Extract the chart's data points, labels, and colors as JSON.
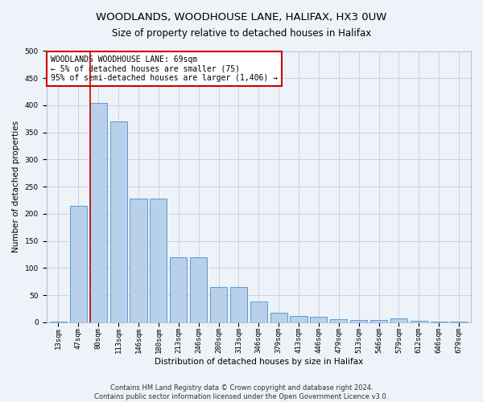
{
  "title": "WOODLANDS, WOODHOUSE LANE, HALIFAX, HX3 0UW",
  "subtitle": "Size of property relative to detached houses in Halifax",
  "xlabel": "Distribution of detached houses by size in Halifax",
  "ylabel": "Number of detached properties",
  "categories": [
    "13sqm",
    "47sqm",
    "80sqm",
    "113sqm",
    "146sqm",
    "180sqm",
    "213sqm",
    "246sqm",
    "280sqm",
    "313sqm",
    "346sqm",
    "379sqm",
    "413sqm",
    "446sqm",
    "479sqm",
    "513sqm",
    "546sqm",
    "579sqm",
    "612sqm",
    "646sqm",
    "679sqm"
  ],
  "values": [
    2,
    215,
    405,
    370,
    228,
    228,
    120,
    120,
    65,
    65,
    38,
    17,
    12,
    10,
    6,
    5,
    5,
    7,
    3,
    2,
    1
  ],
  "bar_color": "#b8d0ea",
  "bar_edge_color": "#5b9bd5",
  "vline_color": "#cc0000",
  "vline_pos": 1.575,
  "annotation_text": "WOODLANDS WOODHOUSE LANE: 69sqm\n← 5% of detached houses are smaller (75)\n95% of semi-detached houses are larger (1,406) →",
  "annotation_box_color": "#ffffff",
  "annotation_box_edge": "#cc0000",
  "ylim": [
    0,
    500
  ],
  "yticks": [
    0,
    50,
    100,
    150,
    200,
    250,
    300,
    350,
    400,
    450,
    500
  ],
  "footer1": "Contains HM Land Registry data © Crown copyright and database right 2024.",
  "footer2": "Contains public sector information licensed under the Open Government Licence v3.0.",
  "title_fontsize": 9.5,
  "subtitle_fontsize": 8.5,
  "axis_label_fontsize": 7.5,
  "tick_fontsize": 6.5,
  "annotation_fontsize": 7,
  "footer_fontsize": 6,
  "background_color": "#eef2f9",
  "plot_background": "#eef2f9",
  "grid_color": "#c5cfe0"
}
